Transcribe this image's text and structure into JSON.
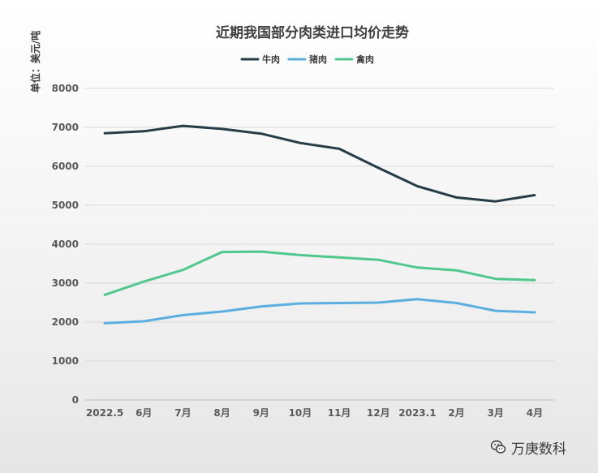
{
  "chart_data": {
    "type": "line",
    "title": "近期我国部分肉类进口均价走势",
    "ylabel": "单位：美元/吨",
    "xlabel": "",
    "ylim": [
      0,
      8000
    ],
    "yticks": [
      0,
      1000,
      2000,
      3000,
      4000,
      5000,
      6000,
      7000,
      8000
    ],
    "grid": true,
    "legend_position": "top-center",
    "categories": [
      "2022.5",
      "6月",
      "7月",
      "8月",
      "9月",
      "10月",
      "11月",
      "12月",
      "2023.1",
      "2月",
      "3月",
      "4月"
    ],
    "series": [
      {
        "name": "牛肉",
        "color": "#263c46",
        "values": [
          6850,
          6900,
          7040,
          6960,
          6840,
          6600,
          6450,
          5960,
          5490,
          5200,
          5100,
          5260
        ]
      },
      {
        "name": "猪肉",
        "color": "#5aafe0",
        "values": [
          1970,
          2020,
          2180,
          2270,
          2400,
          2480,
          2490,
          2500,
          2590,
          2490,
          2290,
          2250
        ]
      },
      {
        "name": "禽肉",
        "color": "#4fc88c",
        "values": [
          2700,
          3040,
          3340,
          3800,
          3810,
          3720,
          3660,
          3600,
          3400,
          3330,
          3110,
          3080
        ]
      }
    ]
  },
  "watermark": {
    "icon": "wechat-icon",
    "text": "万庚数科"
  }
}
